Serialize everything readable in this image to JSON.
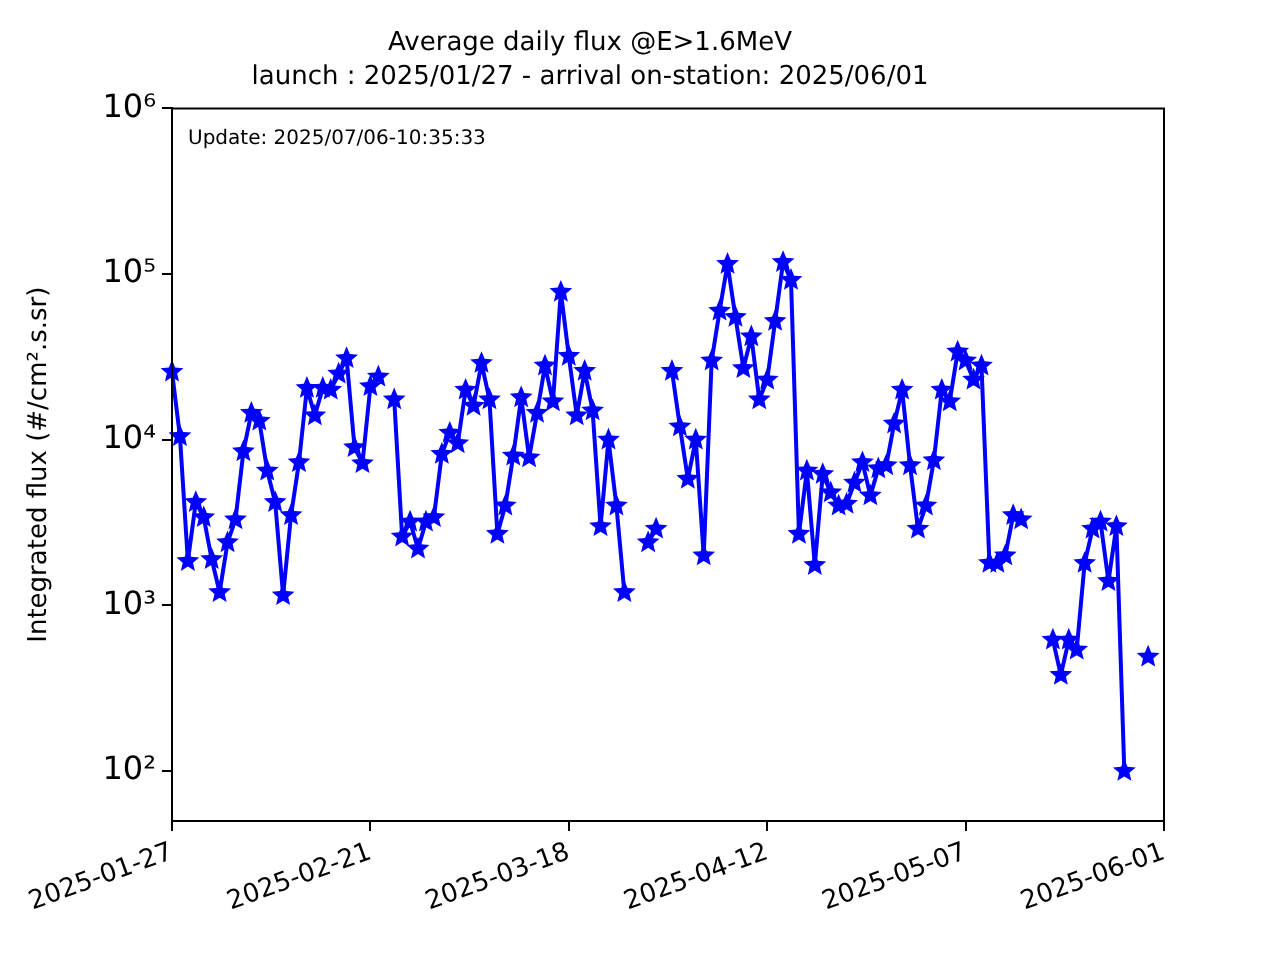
{
  "chart_data": {
    "type": "line",
    "title": "Average daily flux @E>1.6MeV",
    "subtitle": "launch : 2025/01/27 - arrival on-station: 2025/06/01",
    "ylabel": "Integrated flux (#/cm².s.sr)",
    "annotations": [
      "Update: 2025/07/06-10:35:33"
    ],
    "x": [
      "2025-01-27",
      "2025-01-28",
      "2025-01-29",
      "2025-01-30",
      "2025-01-31",
      "2025-02-01",
      "2025-02-02",
      "2025-02-03",
      "2025-02-04",
      "2025-02-05",
      "2025-02-06",
      "2025-02-07",
      "2025-02-08",
      "2025-02-09",
      "2025-02-10",
      "2025-02-11",
      "2025-02-12",
      "2025-02-13",
      "2025-02-14",
      "2025-02-15",
      "2025-02-16",
      "2025-02-17",
      "2025-02-18",
      "2025-02-19",
      "2025-02-20",
      "2025-02-21",
      "2025-02-22",
      "2025-02-23",
      "2025-02-24",
      "2025-02-25",
      "2025-02-26",
      "2025-02-27",
      "2025-02-28",
      "2025-03-01",
      "2025-03-02",
      "2025-03-03",
      "2025-03-04",
      "2025-03-05",
      "2025-03-06",
      "2025-03-07",
      "2025-03-08",
      "2025-03-09",
      "2025-03-10",
      "2025-03-11",
      "2025-03-12",
      "2025-03-13",
      "2025-03-14",
      "2025-03-15",
      "2025-03-16",
      "2025-03-17",
      "2025-03-18",
      "2025-03-19",
      "2025-03-20",
      "2025-03-21",
      "2025-03-22",
      "2025-03-23",
      "2025-03-24",
      "2025-03-25",
      "2025-03-26",
      "2025-03-27",
      "2025-03-28",
      "2025-03-29",
      "2025-03-30",
      "2025-03-31",
      "2025-04-01",
      "2025-04-02",
      "2025-04-03",
      "2025-04-04",
      "2025-04-05",
      "2025-04-06",
      "2025-04-07",
      "2025-04-08",
      "2025-04-09",
      "2025-04-10",
      "2025-04-11",
      "2025-04-12",
      "2025-04-13",
      "2025-04-14",
      "2025-04-15",
      "2025-04-16",
      "2025-04-17",
      "2025-04-18",
      "2025-04-19",
      "2025-04-20",
      "2025-04-21",
      "2025-04-22",
      "2025-04-23",
      "2025-04-24",
      "2025-04-25",
      "2025-04-26",
      "2025-04-27",
      "2025-04-28",
      "2025-04-29",
      "2025-04-30",
      "2025-05-01",
      "2025-05-02",
      "2025-05-03",
      "2025-05-04",
      "2025-05-05",
      "2025-05-06",
      "2025-05-07",
      "2025-05-08",
      "2025-05-09",
      "2025-05-10",
      "2025-05-11",
      "2025-05-12",
      "2025-05-13",
      "2025-05-14",
      "2025-05-15",
      "2025-05-16",
      "2025-05-17",
      "2025-05-18",
      "2025-05-19",
      "2025-05-20",
      "2025-05-21",
      "2025-05-22",
      "2025-05-23",
      "2025-05-24",
      "2025-05-25",
      "2025-05-26",
      "2025-05-27",
      "2025-05-28",
      "2025-05-29",
      "2025-05-30"
    ],
    "values": [
      25700,
      10500,
      1850,
      4200,
      3400,
      1900,
      1200,
      2400,
      3300,
      8500,
      14500,
      13000,
      6500,
      4200,
      1150,
      3500,
      7300,
      20500,
      14000,
      20500,
      20000,
      25000,
      31000,
      9000,
      7200,
      21000,
      24000,
      null,
      17500,
      2600,
      3200,
      2200,
      3200,
      3400,
      8200,
      11000,
      9500,
      20000,
      16000,
      29000,
      17500,
      2700,
      4000,
      8000,
      18000,
      7800,
      14500,
      28000,
      17000,
      78000,
      32000,
      14000,
      26000,
      15000,
      3000,
      10000,
      4000,
      1200,
      null,
      null,
      2400,
      2900,
      null,
      26000,
      12000,
      5800,
      10000,
      2000,
      30000,
      60000,
      115000,
      55000,
      27000,
      42000,
      17500,
      23000,
      52000,
      118000,
      92000,
      2700,
      6500,
      1750,
      6200,
      4800,
      4000,
      4100,
      5500,
      7300,
      4600,
      6700,
      7000,
      12500,
      20000,
      7000,
      2900,
      4000,
      7500,
      20000,
      17000,
      34000,
      30000,
      23000,
      28000,
      1800,
      1800,
      2000,
      3500,
      3300,
      null,
      null,
      null,
      620,
      380,
      620,
      540,
      1800,
      2900,
      3200,
      1400,
      3000,
      100,
      null,
      null,
      490
    ],
    "color": "#0000ff",
    "marker": "star",
    "line_style": "solid",
    "log": "y",
    "grid": false,
    "legend": false,
    "xlim": [
      "2025-01-27",
      "2025-06-01"
    ],
    "xticks": [
      "2025-01-27",
      "2025-02-21",
      "2025-03-18",
      "2025-04-12",
      "2025-05-07",
      "2025-06-01"
    ],
    "ylim": [
      50,
      1000000
    ],
    "yticks": [
      {
        "value": 100,
        "label": "10²"
      },
      {
        "value": 1000,
        "label": "10³"
      },
      {
        "value": 10000,
        "label": "10⁴"
      },
      {
        "value": 100000,
        "label": "10⁵"
      },
      {
        "value": 1000000,
        "label": "10⁶"
      }
    ]
  }
}
